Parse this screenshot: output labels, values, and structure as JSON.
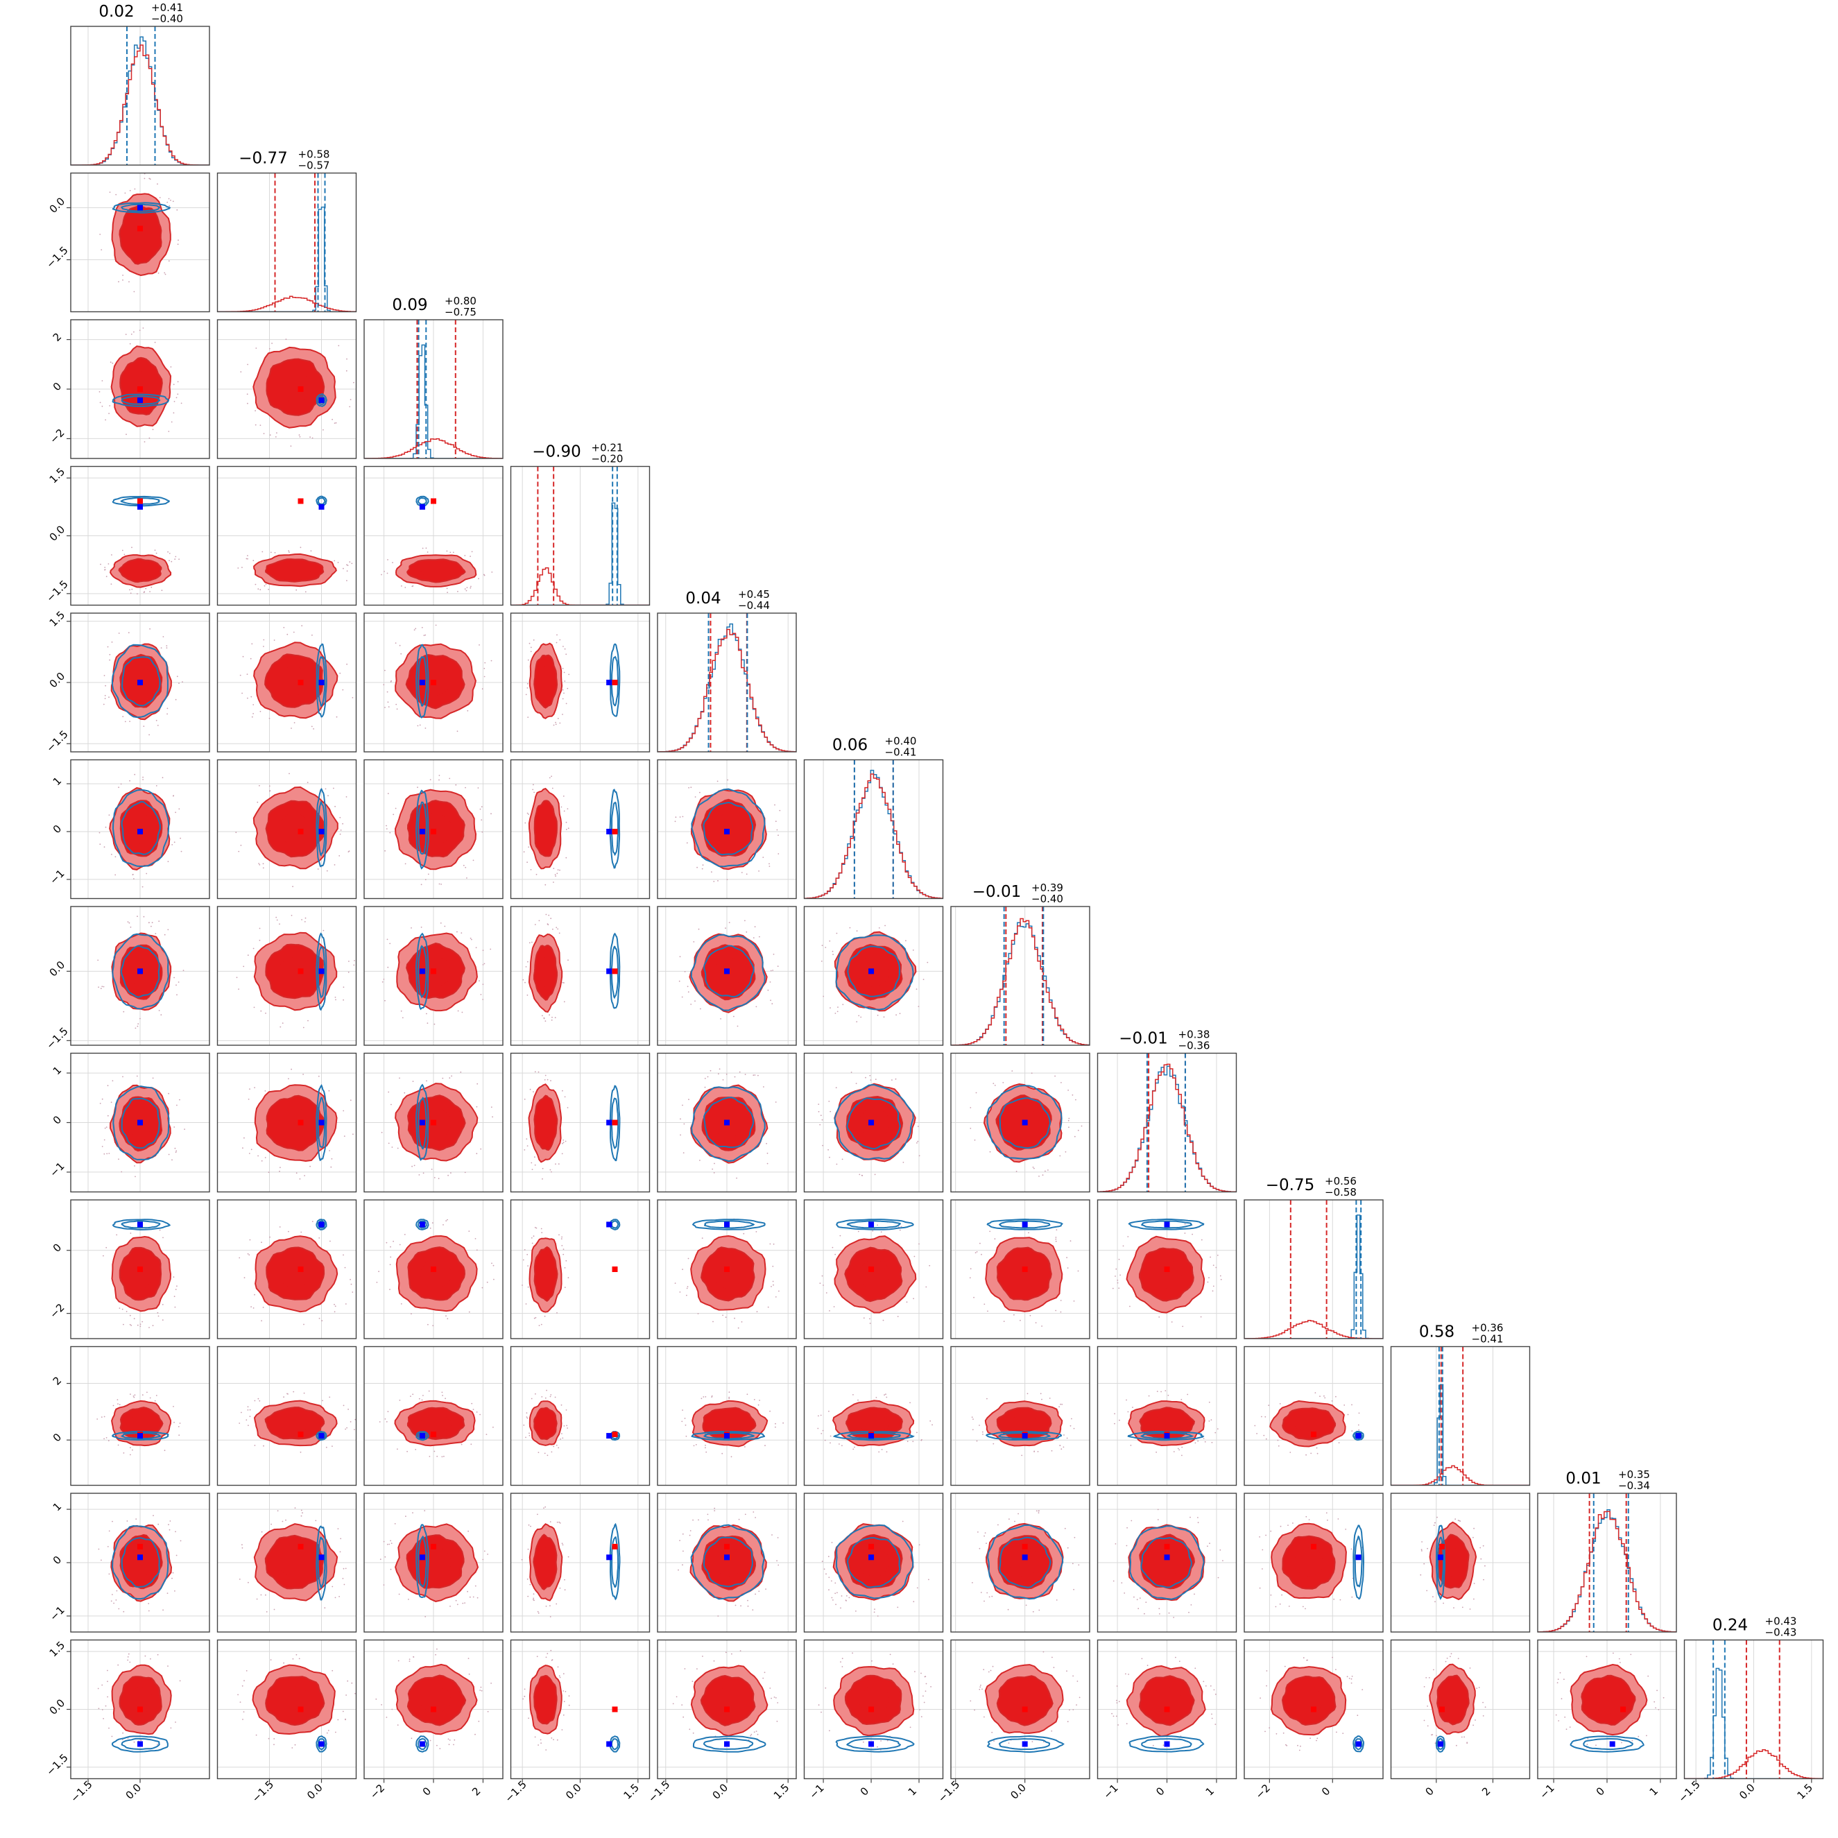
{
  "chart_data": {
    "type": "corner",
    "n_params": 12,
    "grid": true,
    "colors": {
      "posterior_a": "#d62728",
      "posterior_a_fill_inner": "#e41a1c",
      "posterior_a_fill_outer": "#f08a8a",
      "posterior_b": "#1f77b4",
      "marker_a": "#ff0000",
      "marker_b": "#0000ff"
    },
    "params": [
      {
        "median": "0.02",
        "plus": "+0.41",
        "minus": "−0.40",
        "range": [
          -2.0,
          2.0
        ],
        "ticks": [
          -1.5,
          0.0
        ],
        "tick_labels": [
          "−1.5",
          "0.0"
        ],
        "red": {
          "center": 0.02,
          "sd": 0.41
        },
        "blue": {
          "center": 0.02,
          "sd": 0.4
        },
        "red_lines": [
          -0.38,
          0.43
        ],
        "blue_lines": [
          -0.38,
          0.43
        ],
        "true_red": 0.0,
        "true_blue": 0.0
      },
      {
        "median": "−0.77",
        "plus": "+0.58",
        "minus": "−0.57",
        "range": [
          -3.0,
          1.0
        ],
        "ticks": [
          -1.5,
          0.0
        ],
        "tick_labels": [
          "−1.5",
          "0.0"
        ],
        "red": {
          "center": -0.77,
          "sd": 0.57
        },
        "blue": {
          "center": 0.0,
          "sd": 0.07
        },
        "red_lines": [
          -1.34,
          -0.19
        ],
        "blue_lines": [
          -0.1,
          0.1
        ],
        "true_red": -0.6,
        "true_blue": 0.0
      },
      {
        "median": "0.09",
        "plus": "+0.80",
        "minus": "−0.75",
        "range": [
          -2.8,
          2.8
        ],
        "ticks": [
          -2,
          0,
          2
        ],
        "tick_labels": [
          "−2",
          "0",
          "2"
        ],
        "red": {
          "center": 0.09,
          "sd": 0.78
        },
        "blue": {
          "center": -0.45,
          "sd": 0.12
        },
        "red_lines": [
          -0.66,
          0.89
        ],
        "blue_lines": [
          -0.6,
          -0.3
        ],
        "true_red": 0.0,
        "true_blue": -0.45
      },
      {
        "median": "−0.90",
        "plus": "+0.21",
        "minus": "−0.20",
        "range": [
          -1.8,
          1.8
        ],
        "ticks": [
          -1.5,
          0.0,
          1.5
        ],
        "tick_labels": [
          "−1.5",
          "0.0",
          "1.5"
        ],
        "red": {
          "center": -0.9,
          "sd": 0.2
        },
        "blue": {
          "center": 0.9,
          "sd": 0.06
        },
        "red_lines": [
          -1.1,
          -0.69
        ],
        "blue_lines": [
          0.84,
          0.96
        ],
        "true_red": 0.9,
        "true_blue": 0.75
      },
      {
        "median": "0.04",
        "plus": "+0.45",
        "minus": "−0.44",
        "range": [
          -1.7,
          1.7
        ],
        "ticks": [
          -1.5,
          0.0,
          1.5
        ],
        "tick_labels": [
          "−1.5",
          "0.0",
          "1.5"
        ],
        "red": {
          "center": 0.04,
          "sd": 0.44
        },
        "blue": {
          "center": 0.04,
          "sd": 0.44
        },
        "red_lines": [
          -0.4,
          0.49
        ],
        "blue_lines": [
          -0.45,
          0.5
        ],
        "true_red": 0.0,
        "true_blue": 0.0
      },
      {
        "median": "0.06",
        "plus": "+0.40",
        "minus": "−0.41",
        "range": [
          -1.4,
          1.5
        ],
        "ticks": [
          -1,
          0,
          1
        ],
        "tick_labels": [
          "−1",
          "0",
          "1"
        ],
        "red": {
          "center": 0.06,
          "sd": 0.4
        },
        "blue": {
          "center": 0.06,
          "sd": 0.4
        },
        "red_lines": [
          -0.35,
          0.46
        ],
        "blue_lines": [
          -0.35,
          0.46
        ],
        "true_red": 0.0,
        "true_blue": 0.0
      },
      {
        "median": "−0.01",
        "plus": "+0.39",
        "minus": "−0.40",
        "range": [
          -1.6,
          1.4
        ],
        "ticks": [
          -1.5,
          0.0
        ],
        "tick_labels": [
          "−1.5",
          "0.0"
        ],
        "red": {
          "center": -0.01,
          "sd": 0.4
        },
        "blue": {
          "center": -0.01,
          "sd": 0.4
        },
        "red_lines": [
          -0.41,
          0.38
        ],
        "blue_lines": [
          -0.45,
          0.4
        ],
        "true_red": 0.0,
        "true_blue": 0.0
      },
      {
        "median": "−0.01",
        "plus": "+0.38",
        "minus": "−0.36",
        "range": [
          -1.4,
          1.4
        ],
        "ticks": [
          -1,
          0,
          1
        ],
        "tick_labels": [
          "−1",
          "0",
          "1"
        ],
        "red": {
          "center": -0.01,
          "sd": 0.37
        },
        "blue": {
          "center": -0.01,
          "sd": 0.37
        },
        "red_lines": [
          -0.37,
          0.37
        ],
        "blue_lines": [
          -0.4,
          0.37
        ],
        "true_red": 0.0,
        "true_blue": 0.0
      },
      {
        "median": "−0.75",
        "plus": "+0.56",
        "minus": "−0.58",
        "range": [
          -2.8,
          1.6
        ],
        "ticks": [
          -2,
          0
        ],
        "tick_labels": [
          "−2",
          "0"
        ],
        "red": {
          "center": -0.75,
          "sd": 0.57
        },
        "blue": {
          "center": 0.82,
          "sd": 0.08
        },
        "red_lines": [
          -1.33,
          -0.19
        ],
        "blue_lines": [
          0.75,
          0.9
        ],
        "true_red": -0.6,
        "true_blue": 0.82
      },
      {
        "median": "0.58",
        "plus": "+0.36",
        "minus": "−0.41",
        "range": [
          -1.6,
          3.3
        ],
        "ticks": [
          0,
          2
        ],
        "tick_labels": [
          "0",
          "2"
        ],
        "red": {
          "center": 0.58,
          "sd": 0.38
        },
        "blue": {
          "center": 0.15,
          "sd": 0.06
        },
        "red_lines": [
          0.17,
          0.94
        ],
        "blue_lines": [
          0.1,
          0.22
        ],
        "true_red": 0.2,
        "true_blue": 0.15
      },
      {
        "median": "0.01",
        "plus": "+0.35",
        "minus": "−0.34",
        "range": [
          -1.3,
          1.3
        ],
        "ticks": [
          -1,
          0,
          1
        ],
        "tick_labels": [
          "−1",
          "0",
          "1"
        ],
        "red": {
          "center": 0.01,
          "sd": 0.34
        },
        "blue": {
          "center": 0.01,
          "sd": 0.34
        },
        "red_lines": [
          -0.33,
          0.36
        ],
        "blue_lines": [
          -0.25,
          0.4
        ],
        "true_red": 0.3,
        "true_blue": 0.1
      },
      {
        "median": "0.24",
        "plus": "+0.43",
        "minus": "−0.43",
        "range": [
          -1.8,
          1.8
        ],
        "ticks": [
          -1.5,
          0.0,
          1.5
        ],
        "tick_labels": [
          "−1.5",
          "0.0",
          "1.5"
        ],
        "red": {
          "center": 0.24,
          "sd": 0.43
        },
        "blue": {
          "center": -0.9,
          "sd": 0.1
        },
        "red_lines": [
          -0.19,
          0.67
        ],
        "blue_lines": [
          -1.05,
          -0.75
        ],
        "true_red": 0.0,
        "true_blue": -0.9
      }
    ]
  }
}
